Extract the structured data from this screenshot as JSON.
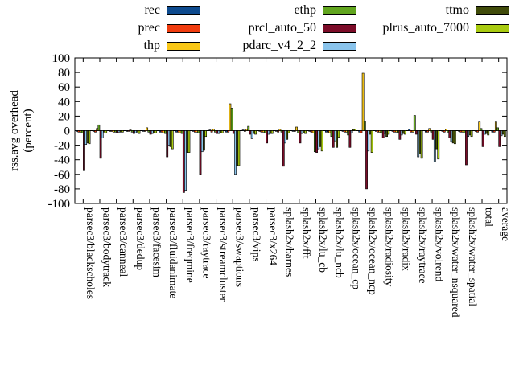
{
  "figure": {
    "background": "#ffffff"
  },
  "chart_data": {
    "type": "bar",
    "title": "",
    "ylabel_lines": [
      "rss.avg overhead",
      "(percent)"
    ],
    "xlabel": "",
    "ylim": [
      -100,
      100
    ],
    "ytick_step": 20,
    "grid": false,
    "zero_line": true,
    "legend_position": "top horizontal, 3 columns",
    "categories": [
      "parsec3/blackscholes",
      "parsec3/bodytrack",
      "parsec3/canneal",
      "parsec3/dedup",
      "parsec3/facesim",
      "parsec3/fluidanimate",
      "parsec3/freqmine",
      "parsec3/raytrace",
      "parsec3/streamcluster",
      "parsec3/swaptions",
      "parsec3/vips",
      "parsec3/x264",
      "splash2x/barnes",
      "splash2x/fft",
      "splash2x/lu_cb",
      "splash2x/lu_ncb",
      "splash2x/ocean_cp",
      "splash2x/ocean_ncp",
      "splash2x/radiosity",
      "splash2x/radix",
      "splash2x/raytrace",
      "splash2x/volrend",
      "splash2x/water_nsquared",
      "splash2x/water_spatial",
      "total",
      "average"
    ],
    "series": [
      {
        "name": "rec",
        "color": "#0d4a8e",
        "values": [
          -1,
          -1,
          -1,
          -1,
          -1,
          -2,
          -2,
          -1,
          1,
          -2,
          1,
          -1,
          -1,
          -1,
          -1,
          -2,
          -1,
          -2,
          -1,
          -1,
          2,
          -2,
          -1,
          -1,
          -1,
          -2
        ]
      },
      {
        "name": "prec",
        "color": "#f03c0e",
        "values": [
          -2,
          -2,
          -1,
          -1,
          -1,
          -2,
          -2,
          -2,
          -2,
          -2,
          -1,
          -2,
          -2,
          -1,
          -2,
          -2,
          -2,
          -3,
          -2,
          -2,
          -2,
          -2,
          -2,
          -2,
          -2,
          -2
        ]
      },
      {
        "name": "thp",
        "color": "#f9c716",
        "values": [
          -2,
          3,
          -2,
          1,
          4,
          -3,
          -3,
          -2,
          2,
          37,
          2,
          -2,
          2,
          5,
          -3,
          -3,
          -2,
          79,
          -2,
          -2,
          -2,
          3,
          2,
          -2,
          12,
          12
        ]
      },
      {
        "name": "ethp",
        "color": "#61a51e",
        "values": [
          -3,
          8,
          -2,
          -2,
          -2,
          -4,
          -4,
          -3,
          -2,
          31,
          6,
          -3,
          -2,
          -3,
          -29,
          -8,
          -6,
          13,
          -3,
          -3,
          21,
          -2,
          -2,
          -3,
          3,
          4
        ]
      },
      {
        "name": "prcl_auto_50",
        "color": "#7c0c28",
        "values": [
          -55,
          -38,
          -3,
          -4,
          -5,
          -36,
          -85,
          -60,
          -4,
          -4,
          -5,
          -17,
          -49,
          -17,
          -30,
          -23,
          -23,
          -80,
          -10,
          -12,
          -5,
          -12,
          -10,
          -47,
          -22,
          -22
        ]
      },
      {
        "name": "pdarc_v4_2_2",
        "color": "#8ac4ec",
        "values": [
          -19,
          -10,
          -2,
          -3,
          -4,
          -20,
          -82,
          -29,
          -4,
          -60,
          -11,
          -5,
          -17,
          -4,
          -25,
          -14,
          -3,
          -28,
          -4,
          -6,
          -36,
          -43,
          -15,
          -8,
          -5,
          -7
        ]
      },
      {
        "name": "ttmo",
        "color": "#404b0a",
        "values": [
          -17,
          -2,
          -2,
          -2,
          -3,
          -22,
          -30,
          -27,
          -3,
          -48,
          -4,
          -4,
          -12,
          -3,
          -22,
          -23,
          2,
          -5,
          -8,
          -4,
          -32,
          -25,
          -17,
          -6,
          -4,
          -5
        ]
      },
      {
        "name": "plrus_auto_7000",
        "color": "#a9cb10",
        "values": [
          -18,
          -3,
          -2,
          -4,
          -3,
          -25,
          -30,
          -8,
          -3,
          -48,
          -5,
          -4,
          -3,
          -4,
          -28,
          -9,
          2,
          -30,
          -5,
          -5,
          -38,
          -39,
          -18,
          -8,
          -6,
          -8
        ]
      }
    ],
    "legend_columns": [
      [
        "rec",
        "prec",
        "thp"
      ],
      [
        "ethp",
        "prcl_auto_50",
        "pdarc_v4_2_2"
      ],
      [
        "ttmo",
        "plrus_auto_7000"
      ]
    ]
  },
  "layout_hints": {
    "ytick_labels": [
      "100",
      "80",
      "60",
      "40",
      "20",
      "0",
      "-20",
      "-40",
      "-60",
      "-80",
      "-100"
    ]
  }
}
